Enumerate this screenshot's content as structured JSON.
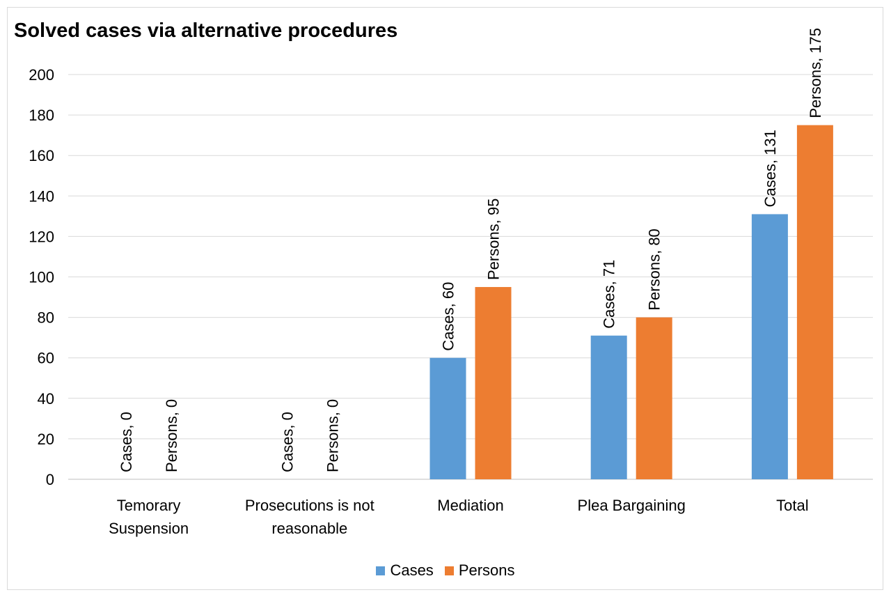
{
  "chart_data": {
    "type": "bar",
    "title": "Solved cases via alternative procedures",
    "categories": [
      [
        "Temorary",
        "Suspension"
      ],
      [
        "Prosecutions is not",
        "reasonable"
      ],
      [
        "Mediation"
      ],
      [
        "Plea Bargaining"
      ],
      [
        "Total"
      ]
    ],
    "series": [
      {
        "name": "Cases",
        "color": "#5b9bd5",
        "values": [
          0,
          0,
          60,
          71,
          131
        ]
      },
      {
        "name": "Persons",
        "color": "#ed7d31",
        "values": [
          0,
          0,
          95,
          80,
          175
        ]
      }
    ],
    "data_labels": [
      [
        "Cases, 0",
        "Cases, 0",
        "Cases, 60",
        "Cases, 71",
        "Cases, 131"
      ],
      [
        "Persons, 0",
        "Persons, 0",
        "Persons, 95",
        "Persons, 80",
        "Persons, 175"
      ]
    ],
    "ylim": [
      0,
      200
    ],
    "yticks": [
      "0",
      "20",
      "40",
      "60",
      "80",
      "100",
      "120",
      "140",
      "160",
      "180",
      "200"
    ],
    "grid": true,
    "legend_position": "bottom"
  }
}
